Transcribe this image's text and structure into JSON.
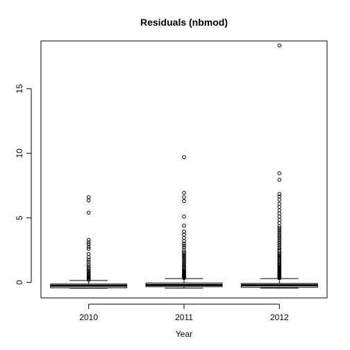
{
  "chart_data": {
    "type": "boxplot",
    "title": "Residuals (nbmod)",
    "xlabel": "Year",
    "ylabel": "",
    "categories": [
      "2010",
      "2011",
      "2012"
    ],
    "ylim": [
      -1.2,
      18.7
    ],
    "yticks": [
      0,
      5,
      10,
      15
    ],
    "ytick_labels": [
      "0",
      "5",
      "10",
      "15"
    ],
    "grid": false,
    "legend": "none",
    "boxes": [
      {
        "category": "2010",
        "whisker_low": -0.45,
        "q1": -0.42,
        "median": -0.25,
        "q3": -0.12,
        "whisker_high": 0.15,
        "outliers": [
          0.2,
          0.27,
          0.33,
          0.4,
          0.48,
          0.55,
          0.62,
          0.7,
          0.8,
          0.9,
          1.0,
          1.1,
          1.25,
          1.4,
          1.6,
          1.75,
          1.95,
          2.2,
          2.6,
          2.75,
          2.95,
          3.1,
          3.3,
          5.4,
          6.35,
          6.6
        ]
      },
      {
        "category": "2011",
        "whisker_low": -0.45,
        "q1": -0.33,
        "median": -0.2,
        "q3": -0.05,
        "whisker_high": 0.3,
        "outliers": [
          0.33,
          0.36,
          0.4,
          0.44,
          0.48,
          0.52,
          0.56,
          0.6,
          0.65,
          0.7,
          0.75,
          0.8,
          0.86,
          0.92,
          1.0,
          1.08,
          1.15,
          1.25,
          1.35,
          1.45,
          1.55,
          1.65,
          1.75,
          1.85,
          1.95,
          2.05,
          2.15,
          2.25,
          2.35,
          2.5,
          2.7,
          2.85,
          3.0,
          3.2,
          3.45,
          3.7,
          3.95,
          4.4,
          5.1,
          6.3,
          6.6,
          6.95,
          9.7
        ]
      },
      {
        "category": "2012",
        "whisker_low": -0.45,
        "q1": -0.38,
        "median": -0.22,
        "q3": -0.08,
        "whisker_high": 0.3,
        "outliers": [
          0.32,
          0.35,
          0.38,
          0.41,
          0.44,
          0.47,
          0.5,
          0.53,
          0.56,
          0.6,
          0.64,
          0.68,
          0.72,
          0.76,
          0.8,
          0.85,
          0.9,
          0.95,
          1.0,
          1.05,
          1.1,
          1.15,
          1.2,
          1.28,
          1.35,
          1.42,
          1.5,
          1.58,
          1.66,
          1.74,
          1.82,
          1.9,
          2.0,
          2.1,
          2.2,
          2.3,
          2.42,
          2.55,
          2.7,
          2.85,
          3.0,
          3.15,
          3.3,
          3.45,
          3.6,
          3.75,
          3.9,
          4.05,
          4.2,
          4.35,
          4.6,
          4.85,
          5.1,
          5.35,
          5.6,
          5.85,
          6.1,
          6.4,
          6.65,
          6.85,
          7.95,
          8.45,
          18.35
        ]
      }
    ]
  }
}
